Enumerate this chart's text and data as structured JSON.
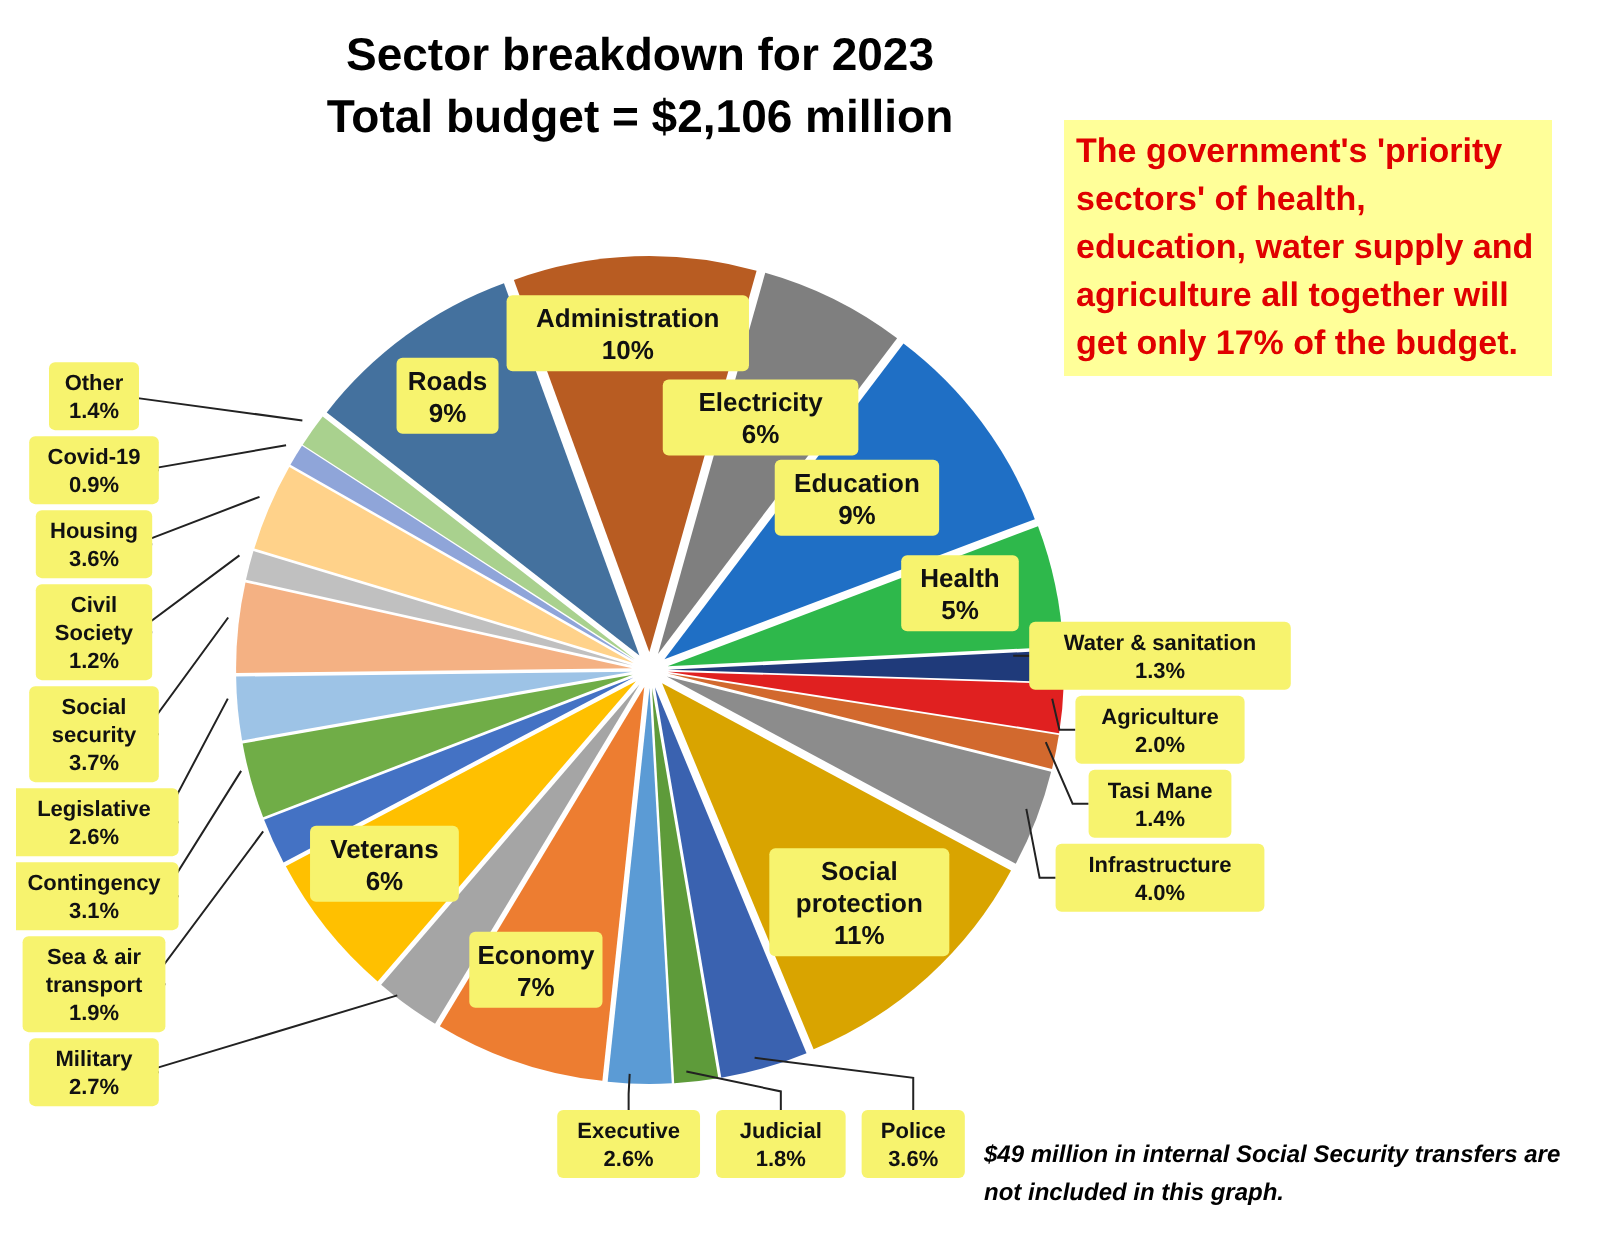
{
  "chart_data": {
    "type": "pie",
    "title": "Sector breakdown for 2023",
    "subtitle": "Total budget = $2,106 million",
    "categories": [
      "Administration",
      "Electricity",
      "Education",
      "Health",
      "Water & sanitation",
      "Agriculture",
      "Tasi Mane",
      "Infrastructure",
      "Social protection",
      "Police",
      "Judicial",
      "Executive",
      "Economy",
      "Military",
      "Veterans",
      "Sea & air transport",
      "Contingency",
      "Legislative",
      "Social security",
      "Civil Society",
      "Housing",
      "Covid-19",
      "Other",
      "Roads"
    ],
    "values": [
      10,
      6,
      9,
      5,
      1.3,
      2.0,
      1.4,
      4.0,
      11,
      3.6,
      1.8,
      2.6,
      7,
      2.7,
      6,
      1.9,
      3.1,
      2.6,
      3.7,
      1.2,
      3.6,
      0.9,
      1.4,
      9
    ],
    "value_labels": [
      "10%",
      "6%",
      "9%",
      "5%",
      "1.3%",
      "2.0%",
      "1.4%",
      "4.0%",
      "11%",
      "3.6%",
      "1.8%",
      "2.6%",
      "7%",
      "2.7%",
      "6%",
      "1.9%",
      "3.1%",
      "2.6%",
      "3.7%",
      "1.2%",
      "3.6%",
      "0.9%",
      "1.4%",
      "9%"
    ],
    "colors": [
      "#b85c22",
      "#7f7f7f",
      "#1f6fc5",
      "#2eb84b",
      "#1f3a7a",
      "#e02020",
      "#d2692e",
      "#8c8c8c",
      "#d9a400",
      "#3a62b0",
      "#5e9b3a",
      "#5b9bd5",
      "#ed7d31",
      "#a5a5a5",
      "#ffc000",
      "#4472c4",
      "#70ad47",
      "#9dc3e6",
      "#f4b183",
      "#c0c0c0",
      "#ffd28a",
      "#8fa5d9",
      "#a9d18e",
      "#44719e"
    ],
    "annotations": [
      "The government's 'priority sectors' of health, education, water supply and agriculture all together will get only 17% of the budget.",
      "$49 million in internal Social Security transfers are not included in this graph."
    ]
  }
}
